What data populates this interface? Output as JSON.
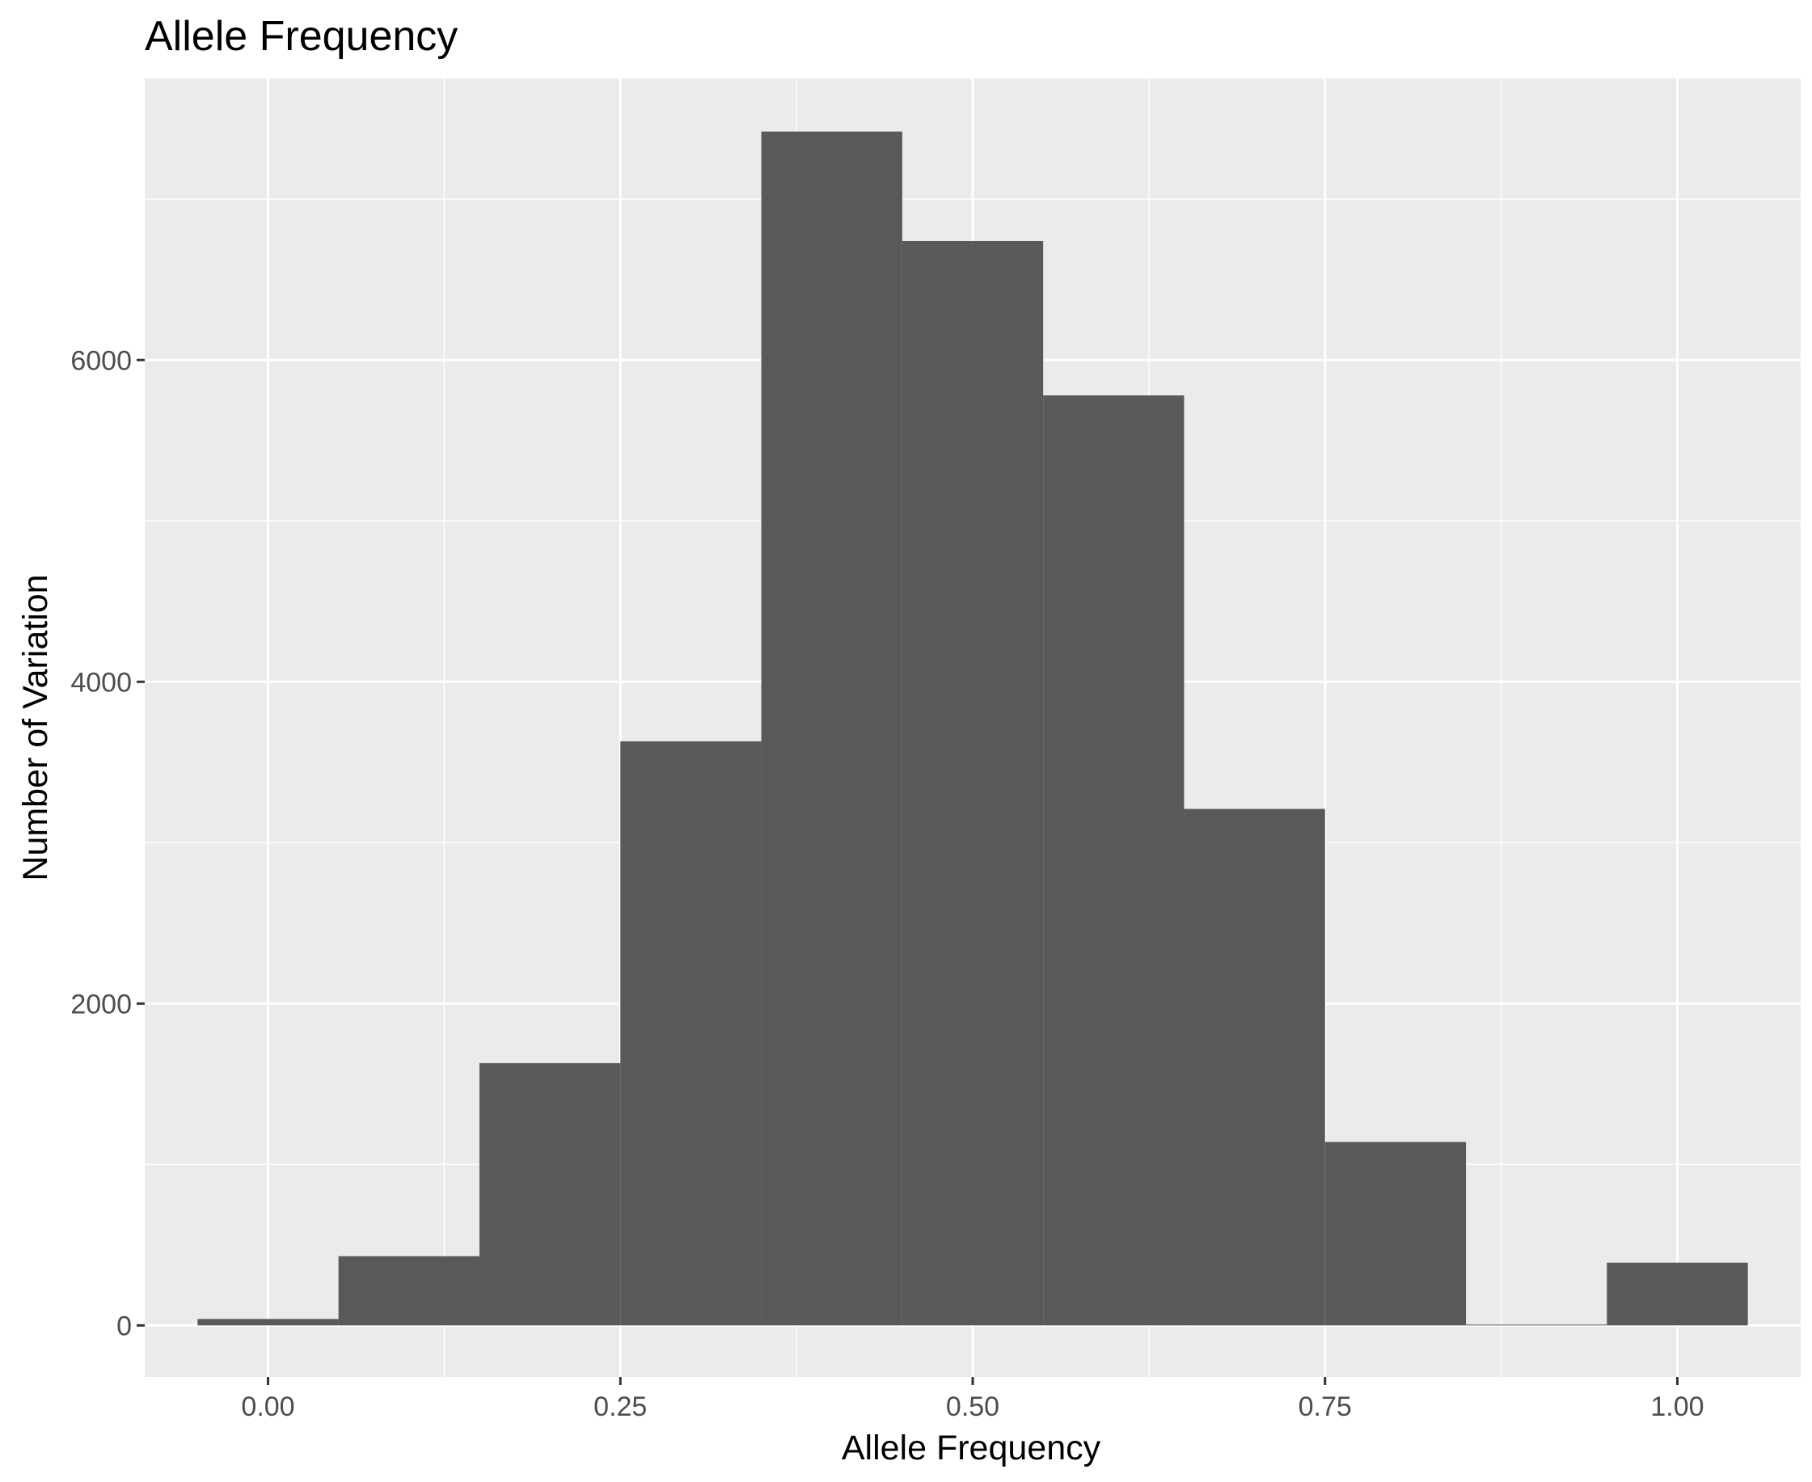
{
  "chart_data": {
    "type": "bar",
    "title": "Allele Frequency",
    "xlabel": "Allele Frequency",
    "ylabel": "Number of Variation",
    "xlim": [
      -0.0875,
      1.0875
    ],
    "ylim": [
      -320,
      7750
    ],
    "x_ticks": [
      "0.00",
      "0.25",
      "0.50",
      "0.75",
      "1.00"
    ],
    "x_tick_values": [
      0,
      0.25,
      0.5,
      0.75,
      1.0
    ],
    "y_ticks": [
      "0",
      "2000",
      "4000",
      "6000"
    ],
    "y_tick_values": [
      0,
      2000,
      4000,
      6000
    ],
    "grid": true,
    "bin_width": 0.1,
    "bins": [
      {
        "center": 0.0,
        "count": 40
      },
      {
        "center": 0.1,
        "count": 430
      },
      {
        "center": 0.2,
        "count": 1630
      },
      {
        "center": 0.3,
        "count": 3630
      },
      {
        "center": 0.4,
        "count": 7420
      },
      {
        "center": 0.5,
        "count": 6740
      },
      {
        "center": 0.6,
        "count": 5780
      },
      {
        "center": 0.7,
        "count": 3210
      },
      {
        "center": 0.8,
        "count": 1140
      },
      {
        "center": 0.9,
        "count": 5
      },
      {
        "center": 1.0,
        "count": 390
      }
    ],
    "colors": {
      "panel": "#ebebeb",
      "grid_major": "#ffffff",
      "bar": "#595959",
      "tick": "#333333"
    }
  }
}
